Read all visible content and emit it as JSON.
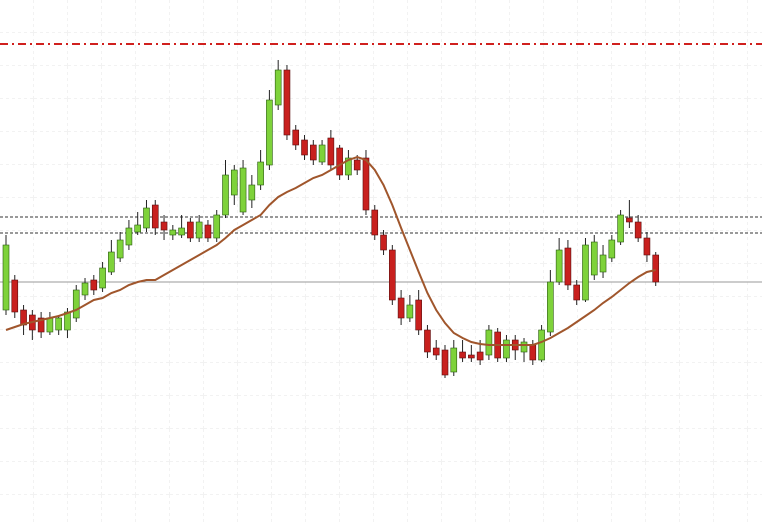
{
  "chart_data": {
    "type": "candlestick",
    "ylim": [
      77,
      600
    ],
    "up_color": "#7ed23a",
    "down_color": "#c8201e",
    "open": [
      290,
      320,
      290,
      285,
      282,
      268,
      270,
      270,
      282,
      305,
      320,
      312,
      328,
      342,
      355,
      368,
      372,
      395,
      378,
      365,
      365,
      378,
      362,
      375,
      362,
      385,
      405,
      388,
      400,
      415,
      435,
      495,
      530,
      470,
      460,
      455,
      438,
      462,
      452,
      425,
      440,
      442,
      390,
      365,
      350,
      302,
      282,
      300,
      270,
      252,
      250,
      228,
      248,
      245,
      248,
      245,
      268,
      242,
      260,
      248,
      255,
      240,
      268,
      318,
      352,
      315,
      300,
      325,
      328,
      342,
      358,
      382,
      378,
      362,
      345
    ],
    "high": [
      365,
      325,
      295,
      290,
      288,
      288,
      285,
      292,
      315,
      322,
      325,
      338,
      360,
      368,
      380,
      388,
      400,
      400,
      385,
      375,
      385,
      382,
      385,
      380,
      390,
      440,
      435,
      440,
      425,
      450,
      510,
      540,
      535,
      475,
      465,
      460,
      460,
      470,
      455,
      450,
      445,
      450,
      395,
      370,
      355,
      310,
      305,
      310,
      275,
      260,
      255,
      260,
      260,
      255,
      260,
      275,
      272,
      265,
      265,
      262,
      260,
      275,
      330,
      362,
      360,
      320,
      362,
      365,
      355,
      365,
      390,
      400,
      385,
      368,
      348
    ],
    "low": [
      285,
      282,
      265,
      260,
      262,
      265,
      265,
      262,
      278,
      300,
      305,
      308,
      325,
      338,
      350,
      365,
      368,
      365,
      360,
      360,
      362,
      358,
      358,
      358,
      358,
      382,
      395,
      385,
      392,
      410,
      430,
      490,
      460,
      450,
      440,
      435,
      435,
      430,
      420,
      420,
      425,
      385,
      360,
      345,
      295,
      275,
      278,
      265,
      242,
      240,
      222,
      224,
      238,
      238,
      235,
      240,
      238,
      238,
      240,
      238,
      235,
      238,
      264,
      315,
      310,
      295,
      298,
      320,
      322,
      338,
      355,
      372,
      358,
      338,
      314
    ],
    "close": [
      355,
      288,
      275,
      270,
      268,
      282,
      282,
      288,
      310,
      317,
      310,
      332,
      348,
      360,
      372,
      375,
      392,
      372,
      370,
      370,
      372,
      362,
      378,
      362,
      385,
      425,
      430,
      432,
      415,
      438,
      500,
      530,
      465,
      455,
      445,
      440,
      455,
      435,
      425,
      442,
      430,
      390,
      365,
      350,
      300,
      282,
      295,
      270,
      248,
      245,
      225,
      252,
      242,
      242,
      240,
      270,
      242,
      260,
      250,
      258,
      240,
      270,
      318,
      350,
      315,
      300,
      355,
      358,
      345,
      360,
      385,
      378,
      362,
      345,
      318
    ],
    "moving_average": {
      "color": "#a0562c",
      "values": [
        270,
        273,
        276,
        278,
        280,
        282,
        284,
        287,
        290,
        295,
        300,
        302,
        307,
        310,
        315,
        318,
        320,
        320,
        325,
        330,
        335,
        340,
        345,
        350,
        355,
        362,
        370,
        375,
        380,
        385,
        395,
        403,
        408,
        412,
        417,
        422,
        425,
        430,
        435,
        440,
        443,
        440,
        430,
        415,
        395,
        372,
        350,
        328,
        307,
        290,
        277,
        267,
        262,
        258,
        256,
        255,
        255,
        255,
        255,
        255,
        255,
        258,
        262,
        267,
        272,
        278,
        284,
        290,
        297,
        303,
        310,
        317,
        323,
        328,
        330
      ]
    },
    "levels": [
      {
        "value": 556,
        "color": "#d0201e",
        "style": "dashdot"
      },
      {
        "value": 383,
        "color": "#333333",
        "style": "dashed"
      },
      {
        "value": 367,
        "color": "#333333",
        "style": "dashed"
      },
      {
        "value": 318,
        "color": "#999999",
        "style": "solid"
      }
    ]
  }
}
